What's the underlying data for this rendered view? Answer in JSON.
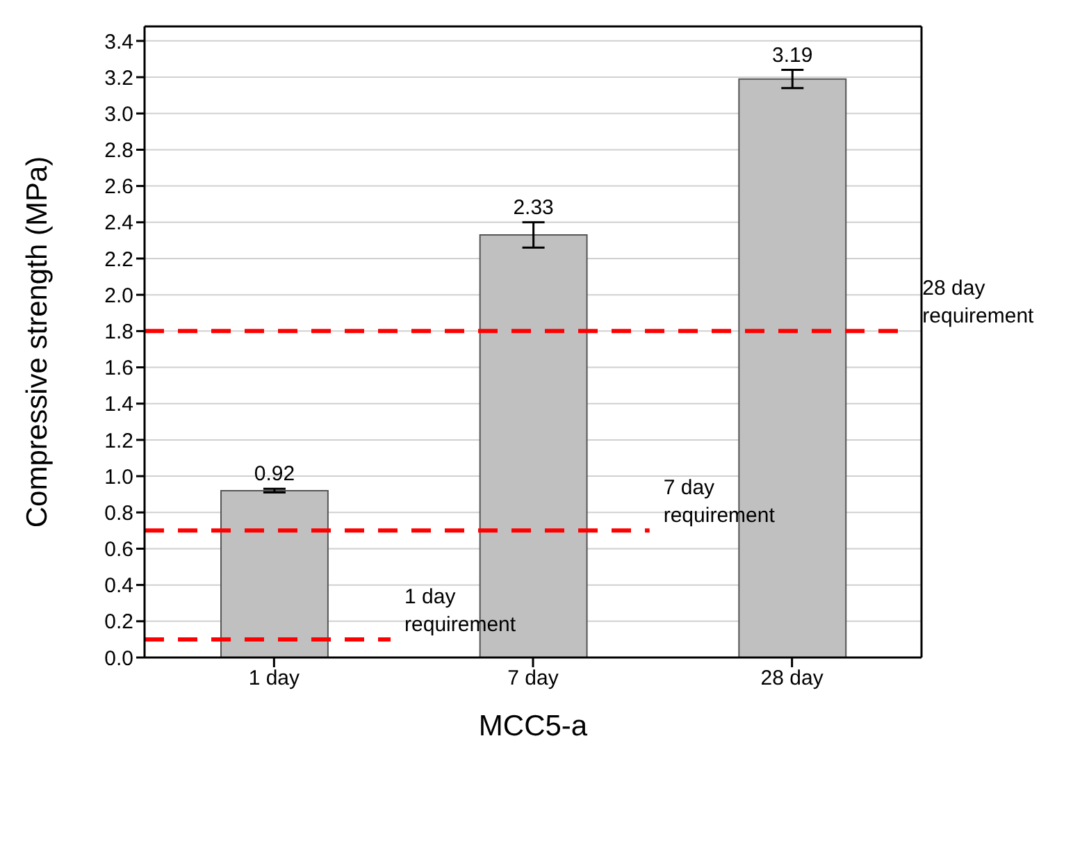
{
  "chart_data": {
    "type": "bar",
    "xlabel": "MCC5-a",
    "ylabel": "Compressive strength (MPa)",
    "categories": [
      "1 day",
      "7 day",
      "28 day"
    ],
    "values": [
      0.92,
      2.33,
      3.19
    ],
    "errors": [
      0.01,
      0.07,
      0.05
    ],
    "color": "#c0c0c0",
    "data_labels": true,
    "ylim": [
      0,
      3.48
    ],
    "yticks": [
      {
        "value": 0,
        "label": "0.0"
      },
      0.2,
      0.4,
      0.6,
      0.8,
      {
        "value": 1,
        "label": "1.0"
      },
      1.2,
      1.4,
      1.6,
      1.8,
      {
        "value": 2,
        "label": "2.0"
      },
      2.2,
      2.4,
      2.6,
      2.8,
      {
        "value": 3,
        "label": "3.0"
      },
      3.2,
      3.4
    ],
    "grid": "y",
    "legend": false,
    "ref_lines": [
      {
        "axis": "y",
        "value": 0.1,
        "label": "1 day requirement",
        "color": "#ff0000",
        "line_style": "dashed"
      },
      {
        "axis": "y",
        "value": 0.7,
        "label": "7 day requirement",
        "color": "#ff0000",
        "line_style": "dashed"
      },
      {
        "axis": "y",
        "value": 1.8,
        "label": "28 day requirement",
        "color": "#ff0000",
        "line_style": "dashed"
      }
    ]
  }
}
